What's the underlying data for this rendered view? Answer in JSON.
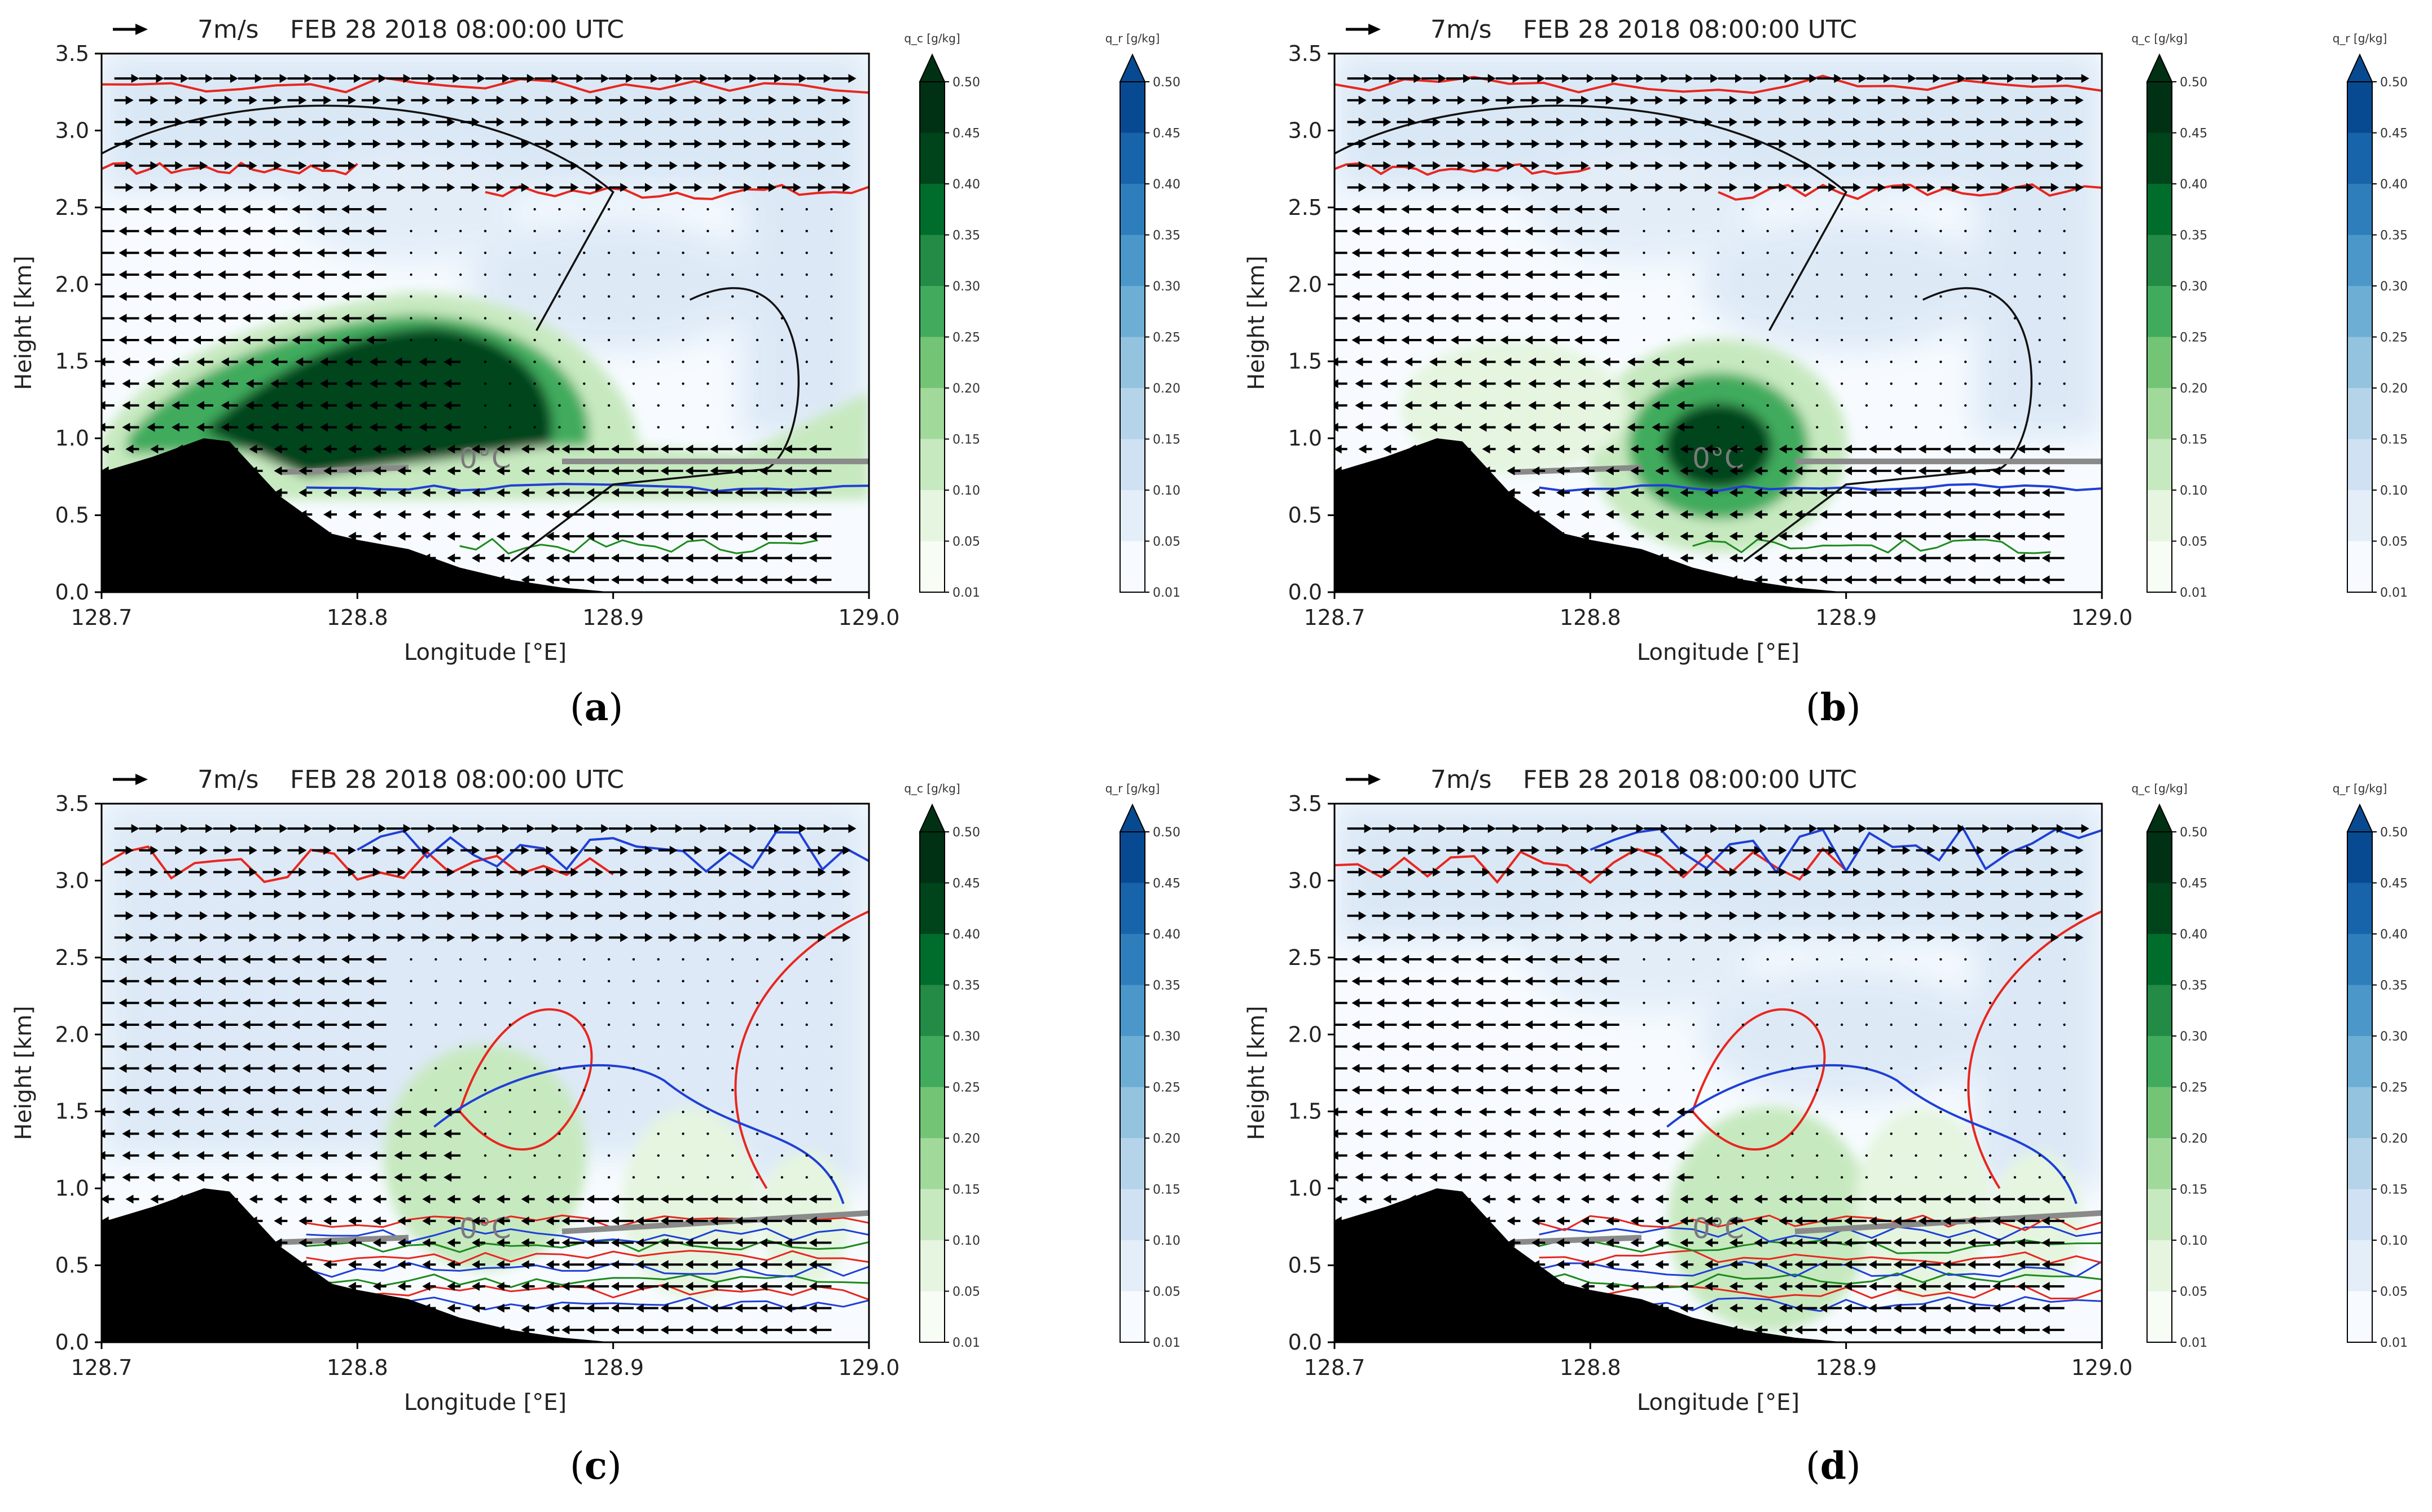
{
  "figure": {
    "caption_labels": [
      "a",
      "b",
      "c",
      "d"
    ]
  },
  "colors": {
    "terrain": "#000000",
    "zero_line": "#8a8a8a",
    "qc_cmap": [
      "#f7fcf5",
      "#e5f5e0",
      "#c7e9c0",
      "#a1d99b",
      "#74c476",
      "#41ab5d",
      "#238b45",
      "#006d2c",
      "#00441b",
      "#003115"
    ],
    "qr_cmap": [
      "#f7fbff",
      "#e3eef9",
      "#cfe1f2",
      "#b5d4e9",
      "#93c3df",
      "#6daed5",
      "#4b97c9",
      "#2e7ebc",
      "#1764ab",
      "#084a91"
    ],
    "contour_red": "#e8261e",
    "contour_blue": "#1f3fd6",
    "contour_green": "#1c8a1c",
    "contour_black": "#111111"
  },
  "chart_data": [
    {
      "id": "a",
      "type": "heatmap",
      "title": "FEB 28 2018 08:00:00 UTC",
      "vector_key": "7m/s",
      "xlabel": "Longitude [°E]",
      "ylabel": "Height [km]",
      "xlim": [
        128.7,
        129.0
      ],
      "ylim": [
        0.0,
        3.5
      ],
      "xticks": [
        "128.7",
        "128.8",
        "128.9",
        "129.0"
      ],
      "yticks": [
        "0.0",
        "0.5",
        "1.0",
        "1.5",
        "2.0",
        "2.5",
        "3.0",
        "3.5"
      ],
      "freezing_label": "0°C",
      "freezing_level_km": 0.85,
      "terrain": {
        "x": [
          128.7,
          128.72,
          128.74,
          128.75,
          128.77,
          128.79,
          128.8,
          128.82,
          128.84,
          128.86,
          128.88,
          128.9
        ],
        "y": [
          0.78,
          0.88,
          1.0,
          0.98,
          0.62,
          0.38,
          0.34,
          0.28,
          0.16,
          0.08,
          0.03,
          0.0
        ]
      },
      "cloud_core": {
        "lon": 128.84,
        "height_km": 1.5,
        "max_qc": 0.5
      },
      "colorbars": [
        {
          "name": "qc",
          "title": "q_c [g/kg]",
          "ticks": [
            "0.50",
            "0.45",
            "0.40",
            "0.35",
            "0.30",
            "0.25",
            "0.20",
            "0.15",
            "0.10",
            "0.05",
            "0.01"
          ]
        },
        {
          "name": "qr",
          "title": "q_r [g/kg]",
          "ticks": [
            "0.50",
            "0.45",
            "0.40",
            "0.35",
            "0.30",
            "0.25",
            "0.20",
            "0.15",
            "0.10",
            "0.05",
            "0.01"
          ]
        }
      ]
    },
    {
      "id": "b",
      "type": "heatmap",
      "title": "FEB 28 2018 08:00:00 UTC",
      "vector_key": "7m/s",
      "xlabel": "Longitude [°E]",
      "ylabel": "Height [km]",
      "xlim": [
        128.7,
        129.0
      ],
      "ylim": [
        0.0,
        3.5
      ],
      "xticks": [
        "128.7",
        "128.8",
        "128.9",
        "129.0"
      ],
      "yticks": [
        "0.0",
        "0.5",
        "1.0",
        "1.5",
        "2.0",
        "2.5",
        "3.0",
        "3.5"
      ],
      "freezing_label": "0°C",
      "freezing_level_km": 0.85,
      "terrain": {
        "x": [
          128.7,
          128.72,
          128.74,
          128.75,
          128.77,
          128.79,
          128.8,
          128.82,
          128.84,
          128.86,
          128.88,
          128.9
        ],
        "y": [
          0.78,
          0.88,
          1.0,
          0.98,
          0.62,
          0.38,
          0.34,
          0.28,
          0.16,
          0.08,
          0.03,
          0.0
        ]
      },
      "cloud_core": {
        "lon": 128.85,
        "height_km": 0.95,
        "max_qc": 0.5
      },
      "colorbars": [
        {
          "name": "qc",
          "title": "q_c [g/kg]",
          "ticks": [
            "0.50",
            "0.45",
            "0.40",
            "0.35",
            "0.30",
            "0.25",
            "0.20",
            "0.15",
            "0.10",
            "0.05",
            "0.01"
          ]
        },
        {
          "name": "qr",
          "title": "q_r [g/kg]",
          "ticks": [
            "0.50",
            "0.45",
            "0.40",
            "0.35",
            "0.30",
            "0.25",
            "0.20",
            "0.15",
            "0.10",
            "0.05",
            "0.01"
          ]
        }
      ]
    },
    {
      "id": "c",
      "type": "heatmap",
      "title": "FEB 28 2018 08:00:00 UTC",
      "vector_key": "7m/s",
      "xlabel": "Longitude [°E]",
      "ylabel": "Height [km]",
      "xlim": [
        128.7,
        129.0
      ],
      "ylim": [
        0.0,
        3.5
      ],
      "xticks": [
        "128.7",
        "128.8",
        "128.9",
        "129.0"
      ],
      "yticks": [
        "0.0",
        "0.5",
        "1.0",
        "1.5",
        "2.0",
        "2.5",
        "3.0",
        "3.5"
      ],
      "freezing_label": "0°C",
      "freezing_level_km": 0.72,
      "terrain": {
        "x": [
          128.7,
          128.72,
          128.74,
          128.75,
          128.77,
          128.79,
          128.8,
          128.82,
          128.84,
          128.86,
          128.88,
          128.9
        ],
        "y": [
          0.78,
          0.88,
          1.0,
          0.98,
          0.62,
          0.38,
          0.34,
          0.28,
          0.16,
          0.08,
          0.03,
          0.0
        ]
      },
      "cloud_core": {
        "lon": 128.85,
        "height_km": 1.2,
        "max_qc": 0.15
      },
      "colorbars": [
        {
          "name": "qc",
          "title": "q_c [g/kg]",
          "ticks": [
            "0.50",
            "0.45",
            "0.40",
            "0.35",
            "0.30",
            "0.25",
            "0.20",
            "0.15",
            "0.10",
            "0.05",
            "0.01"
          ]
        },
        {
          "name": "qr",
          "title": "q_r [g/kg]",
          "ticks": [
            "0.50",
            "0.45",
            "0.40",
            "0.35",
            "0.30",
            "0.25",
            "0.20",
            "0.15",
            "0.10",
            "0.05",
            "0.01"
          ]
        }
      ]
    },
    {
      "id": "d",
      "type": "heatmap",
      "title": "FEB 28 2018 08:00:00 UTC",
      "vector_key": "7m/s",
      "xlabel": "Longitude [°E]",
      "ylabel": "Height [km]",
      "xlim": [
        128.7,
        129.0
      ],
      "ylim": [
        0.0,
        3.5
      ],
      "xticks": [
        "128.7",
        "128.8",
        "128.9",
        "129.0"
      ],
      "yticks": [
        "0.0",
        "0.5",
        "1.0",
        "1.5",
        "2.0",
        "2.5",
        "3.0",
        "3.5"
      ],
      "freezing_label": "0°C",
      "freezing_level_km": 0.72,
      "terrain": {
        "x": [
          128.7,
          128.72,
          128.74,
          128.75,
          128.77,
          128.79,
          128.8,
          128.82,
          128.84,
          128.86,
          128.88,
          128.9
        ],
        "y": [
          0.78,
          0.88,
          1.0,
          0.98,
          0.62,
          0.38,
          0.34,
          0.28,
          0.16,
          0.08,
          0.03,
          0.0
        ]
      },
      "cloud_core": {
        "lon": 128.87,
        "height_km": 0.8,
        "max_qc": 0.1
      },
      "colorbars": [
        {
          "name": "qc",
          "title": "q_c [g/kg]",
          "ticks": [
            "0.50",
            "0.45",
            "0.40",
            "0.35",
            "0.30",
            "0.25",
            "0.20",
            "0.15",
            "0.10",
            "0.05",
            "0.01"
          ]
        },
        {
          "name": "qr",
          "title": "q_r [g/kg]",
          "ticks": [
            "0.50",
            "0.45",
            "0.40",
            "0.35",
            "0.30",
            "0.25",
            "0.20",
            "0.15",
            "0.10",
            "0.05",
            "0.01"
          ]
        }
      ]
    }
  ]
}
